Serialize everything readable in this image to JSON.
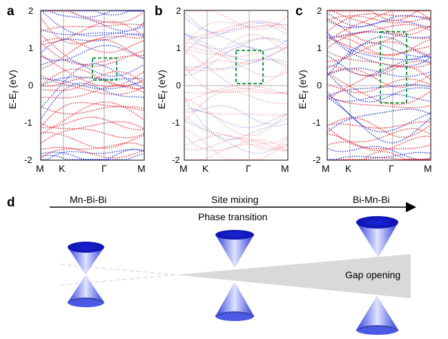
{
  "panels": [
    {
      "letter": "a",
      "yticks": [
        "2",
        "1",
        "0",
        "-1",
        "-2"
      ],
      "kpoints": [
        "M",
        "K",
        "Γ",
        "M"
      ],
      "ylabel_main": "E-E",
      "ylabel_sub": "f",
      "ylabel_unit": " (eV)"
    },
    {
      "letter": "b",
      "yticks": [
        "2",
        "1",
        "0",
        "-1",
        "-2"
      ],
      "kpoints": [
        "M",
        "K",
        "Γ",
        "M"
      ],
      "ylabel_main": "E-E",
      "ylabel_sub": "f",
      "ylabel_unit": " (eV)"
    },
    {
      "letter": "c",
      "yticks": [
        "2",
        "1",
        "0",
        "-1",
        "-2"
      ],
      "kpoints": [
        "M",
        "K",
        "Γ",
        "M"
      ],
      "ylabel_main": "E-E",
      "ylabel_sub": "f",
      "ylabel_unit": " (eV)"
    }
  ],
  "diagram": {
    "letter": "d",
    "left_label": "Mn-Bi-Bi",
    "middle_label": "Site mixing",
    "right_label": "Bi-Mn-Bi",
    "arrow_caption": "Phase transition",
    "gap_label": "Gap opening"
  },
  "colors": {
    "spin_up": "#e8222a",
    "spin_down": "#1f2fd6",
    "highlight_box": "#1aa04a",
    "cone": "#3b4ee6",
    "wedge": "#d9d9d9"
  }
}
